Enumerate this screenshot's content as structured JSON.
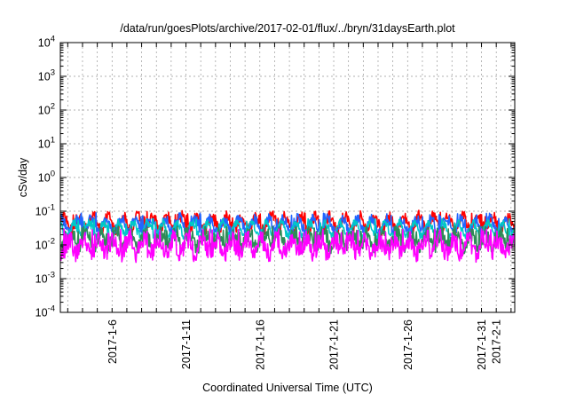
{
  "chart_data": {
    "type": "line",
    "title": "/data/run/goesPlots/archive/2017-02-01/flux/../bryn/31daysEarth.plot",
    "xlabel": "Coordinated Universal Time (UTC)",
    "ylabel": "cSv/day",
    "xscale": "time",
    "yscale": "log",
    "xlim": [
      "2017-01-02T12:00",
      "2017-02-02T06:00"
    ],
    "ylim": [
      0.0001,
      10000
    ],
    "x_ticks": [
      "2017-1-6",
      "2017-1-11",
      "2017-1-16",
      "2017-1-21",
      "2017-1-26",
      "2017-1-31",
      "2017-2-1"
    ],
    "y_ticks": [
      {
        "value": 0.0001,
        "base": "10",
        "exp": "-4"
      },
      {
        "value": 0.001,
        "base": "10",
        "exp": "-3"
      },
      {
        "value": 0.01,
        "base": "10",
        "exp": "-2"
      },
      {
        "value": 0.1,
        "base": "10",
        "exp": "-1"
      },
      {
        "value": 1,
        "base": "10",
        "exp": "0"
      },
      {
        "value": 10,
        "base": "10",
        "exp": "1"
      },
      {
        "value": 100,
        "base": "10",
        "exp": "2"
      },
      {
        "value": 1000,
        "base": "10",
        "exp": "3"
      },
      {
        "value": 10000,
        "base": "10",
        "exp": "4"
      }
    ],
    "grid": true,
    "series": [
      {
        "color": "#ff0000",
        "x_range": [
          "2017-01-02T12:00",
          "2017-02-02T06:00"
        ],
        "samples": 740,
        "base": 0.045,
        "spread": 0.35,
        "spikes": 0.085,
        "seed": 11
      },
      {
        "color": "#2266ff",
        "x_range": [
          "2017-01-02T12:00",
          "2017-02-02T06:00"
        ],
        "samples": 740,
        "base": 0.038,
        "spread": 0.3,
        "spikes": 0.075,
        "seed": 23
      },
      {
        "color": "#00c8c8",
        "x_range": [
          "2017-01-02T12:00",
          "2017-02-02T06:00"
        ],
        "samples": 740,
        "base": 0.028,
        "spread": 0.25,
        "spikes": 0.05,
        "seed": 37
      },
      {
        "color": "#2e8b57",
        "x_range": [
          "2017-01-02T12:00",
          "2017-02-02T06:00"
        ],
        "samples": 740,
        "base": 0.014,
        "spread": 0.45,
        "spikes": 0.03,
        "seed": 41
      },
      {
        "color": "#ff00ff",
        "x_range": [
          "2017-01-02T12:00",
          "2017-02-02T06:00"
        ],
        "samples": 740,
        "base": 0.009,
        "spread": 0.55,
        "spikes": 0.025,
        "seed": 53
      }
    ]
  }
}
